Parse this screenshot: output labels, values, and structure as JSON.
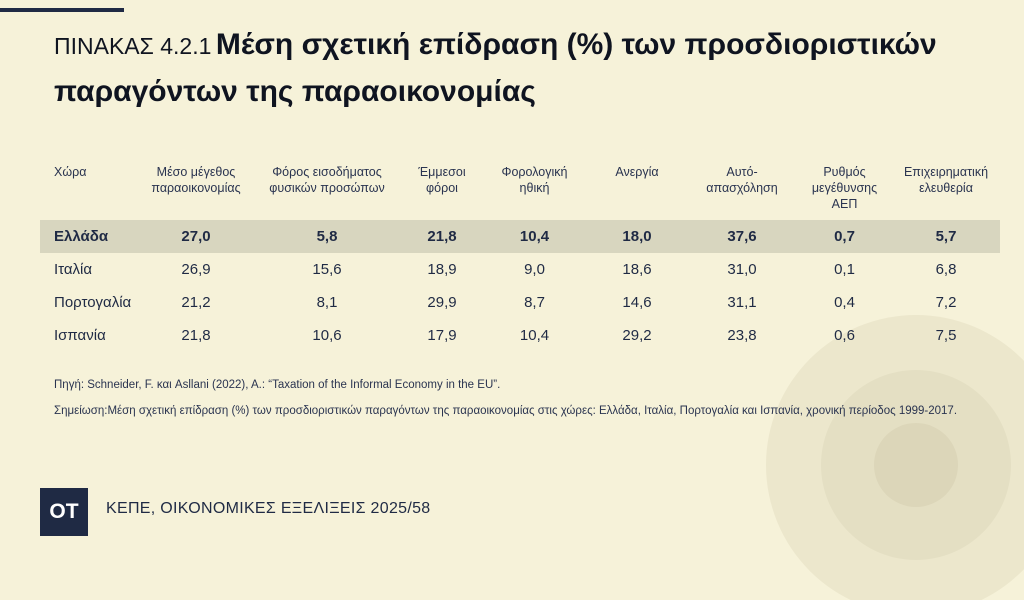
{
  "title": {
    "prefix": "ΠΙΝΑΚΑΣ 4.2.1",
    "text": "Μέση σχετική επίδραση (%) των προσδιοριστικών παραγόντων της παραοικονομίας"
  },
  "table": {
    "headers": [
      "Χώρα",
      "Μέσο μέγεθος παραοικονομίας",
      "Φόρος εισοδήματος φυσικών προσώπων",
      "Έμμεσοι φόροι",
      "Φορολογική ηθική",
      "Ανεργία",
      "Αυτό-απασχόληση",
      "Ρυθμός μεγέθυνσης ΑΕΠ",
      "Επιχειρηματική ελευθερία"
    ],
    "rows": [
      [
        "Ελλάδα",
        "27,0",
        "5,8",
        "21,8",
        "10,4",
        "18,0",
        "37,6",
        "0,7",
        "5,7"
      ],
      [
        "Ιταλία",
        "26,9",
        "15,6",
        "18,9",
        "9,0",
        "18,6",
        "31,0",
        "0,1",
        "6,8"
      ],
      [
        "Πορτογαλία",
        "21,2",
        "8,1",
        "29,9",
        "8,7",
        "14,6",
        "31,1",
        "0,4",
        "7,2"
      ],
      [
        "Ισπανία",
        "21,8",
        "10,6",
        "17,9",
        "10,4",
        "29,2",
        "23,8",
        "0,6",
        "7,5"
      ]
    ]
  },
  "source": "Πηγή: Schneider, F. και Asllani (2022), A.: “Taxation of the Informal Economy in the EU”.",
  "note": "Σημείωση:Μέση σχετική επίδραση (%) των προσδιοριστικών παραγόντων της παραοικονομίας στις χώρες: Ελλάδα, Ιταλία, Πορτογαλία και Ισπανία, χρονική περίοδος 1999-2017.",
  "footer": {
    "logo": "ΟΤ",
    "text": "ΚΕΠΕ, ΟΙΚΟΝΟΜΙΚΕΣ ΕΞΕΛΙΞΕΙΣ 2025/58"
  },
  "colors": {
    "background": "#f6f2d9",
    "navy": "#1f2a44",
    "highlight_row": "#d8d6bf"
  }
}
